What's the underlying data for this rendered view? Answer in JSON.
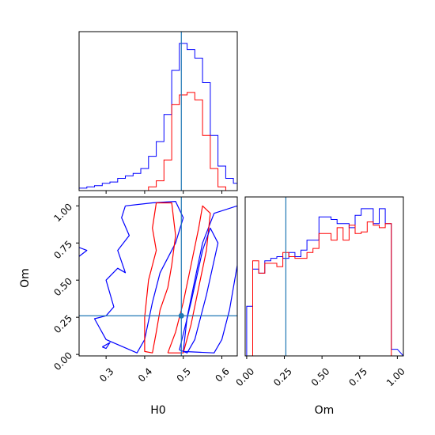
{
  "chart_data": {
    "type": "corner",
    "parameters": [
      "H0",
      "Om"
    ],
    "truth": {
      "H0": 0.495,
      "Om": 0.26
    },
    "colors": {
      "blue": "#0000ff",
      "red": "#ff0000",
      "truth": "#1f77b4"
    },
    "panels": [
      {
        "id": "hist-H0",
        "type": "histogram",
        "parameter": "H0",
        "xlim": [
          0.23,
          0.64
        ],
        "xticks": [
          0.3,
          0.4,
          0.5,
          0.6
        ],
        "bin_edges": [
          0.23,
          0.25,
          0.27,
          0.29,
          0.31,
          0.33,
          0.35,
          0.37,
          0.39,
          0.41,
          0.43,
          0.45,
          0.47,
          0.49,
          0.51,
          0.53,
          0.55,
          0.57,
          0.59,
          0.61,
          0.63,
          0.64
        ],
        "series": [
          {
            "color": "blue",
            "counts": [
              2,
              3,
              4,
              6,
              7,
              10,
              12,
              14,
              18,
              28,
              40,
              62,
              98,
              120,
              115,
              108,
              88,
              45,
              20,
              10,
              6
            ]
          },
          {
            "color": "red",
            "counts": [
              0,
              0,
              0,
              0,
              0,
              0,
              0,
              0,
              0,
              3,
              8,
              25,
              70,
              78,
              80,
              74,
              45,
              18,
              3,
              0,
              0
            ]
          }
        ]
      },
      {
        "id": "hist-Om",
        "type": "histogram",
        "parameter": "Om",
        "xlim": [
          -0.01,
          1.04
        ],
        "xticks": [
          0.0,
          0.25,
          0.5,
          0.75,
          1.0
        ],
        "xtick_labels": [
          "0.00",
          "0.25",
          "0.50",
          "0.75",
          "1.00"
        ],
        "xlabel": "Om",
        "bin_edges": [
          0.0,
          0.04,
          0.08,
          0.12,
          0.16,
          0.2,
          0.24,
          0.28,
          0.32,
          0.36,
          0.4,
          0.44,
          0.48,
          0.52,
          0.56,
          0.6,
          0.64,
          0.68,
          0.72,
          0.76,
          0.8,
          0.84,
          0.88,
          0.92,
          0.96,
          1.0,
          1.04
        ],
        "series": [
          {
            "color": "blue",
            "counts": [
              60,
              105,
              100,
              115,
              118,
              120,
              118,
              125,
              120,
              128,
              140,
              140,
              168,
              168,
              165,
              160,
              160,
              155,
              170,
              178,
              178,
              160,
              178,
              160,
              8
            ]
          },
          {
            "color": "red",
            "counts": [
              0,
              115,
              100,
              112,
              112,
              108,
              125,
              120,
              118,
              118,
              125,
              130,
              148,
              148,
              140,
              155,
              140,
              158,
              148,
              150,
              162,
              158,
              155,
              160,
              0
            ]
          }
        ]
      },
      {
        "id": "contour-H0-Om",
        "type": "contour",
        "x_param": "H0",
        "y_param": "Om",
        "xlim": [
          0.23,
          0.64
        ],
        "ylim": [
          -0.01,
          1.06
        ],
        "xticks": [
          0.3,
          0.4,
          0.5,
          0.6
        ],
        "yticks": [
          0.0,
          0.25,
          0.5,
          0.75,
          1.0
        ],
        "ytick_labels": [
          "0.00",
          "0.25",
          "0.50",
          "0.75",
          "1.00"
        ],
        "xlabel": "H0",
        "ylabel": "Om",
        "contours": [
          {
            "color": "blue",
            "points": [
              [
                0.35,
                1.0
              ],
              [
                0.42,
                1.02
              ],
              [
                0.48,
                1.03
              ],
              [
                0.5,
                0.92
              ],
              [
                0.48,
                0.75
              ],
              [
                0.44,
                0.55
              ],
              [
                0.42,
                0.35
              ],
              [
                0.4,
                0.1
              ],
              [
                0.38,
                0.01
              ],
              [
                0.3,
                0.1
              ],
              [
                0.27,
                0.24
              ],
              [
                0.3,
                0.26
              ],
              [
                0.32,
                0.32
              ],
              [
                0.3,
                0.5
              ],
              [
                0.33,
                0.58
              ],
              [
                0.35,
                0.55
              ],
              [
                0.33,
                0.7
              ],
              [
                0.36,
                0.8
              ],
              [
                0.34,
                0.92
              ],
              [
                0.35,
                1.0
              ]
            ]
          },
          {
            "color": "blue",
            "points": [
              [
                0.5,
                0.02
              ],
              [
                0.51,
                0.25
              ],
              [
                0.53,
                0.5
              ],
              [
                0.55,
                0.75
              ],
              [
                0.58,
                0.95
              ],
              [
                0.64,
                1.0
              ],
              [
                0.64,
                0.6
              ],
              [
                0.62,
                0.3
              ],
              [
                0.6,
                0.1
              ],
              [
                0.58,
                0.01
              ],
              [
                0.5,
                0.02
              ]
            ]
          },
          {
            "color": "blue",
            "points": [
              [
                0.23,
                0.66
              ],
              [
                0.25,
                0.7
              ],
              [
                0.23,
                0.72
              ]
            ]
          },
          {
            "color": "blue",
            "points": [
              [
                0.29,
                0.05
              ],
              [
                0.31,
                0.08
              ],
              [
                0.3,
                0.04
              ],
              [
                0.29,
                0.05
              ]
            ]
          },
          {
            "color": "red",
            "points": [
              [
                0.43,
                1.02
              ],
              [
                0.47,
                1.02
              ],
              [
                0.48,
                0.8
              ],
              [
                0.47,
                0.6
              ],
              [
                0.46,
                0.45
              ],
              [
                0.44,
                0.3
              ],
              [
                0.43,
                0.15
              ],
              [
                0.42,
                0.01
              ],
              [
                0.4,
                0.02
              ],
              [
                0.4,
                0.25
              ],
              [
                0.41,
                0.5
              ],
              [
                0.43,
                0.7
              ],
              [
                0.42,
                0.85
              ],
              [
                0.43,
                1.02
              ]
            ]
          },
          {
            "color": "red",
            "points": [
              [
                0.46,
                0.01
              ],
              [
                0.48,
                0.15
              ],
              [
                0.5,
                0.35
              ],
              [
                0.52,
                0.6
              ],
              [
                0.54,
                0.85
              ],
              [
                0.55,
                1.0
              ],
              [
                0.57,
                0.95
              ],
              [
                0.56,
                0.7
              ],
              [
                0.54,
                0.45
              ],
              [
                0.52,
                0.2
              ],
              [
                0.5,
                0.01
              ],
              [
                0.46,
                0.01
              ]
            ]
          },
          {
            "color": "blue",
            "points": [
              [
                0.49,
                0.03
              ],
              [
                0.52,
                0.35
              ],
              [
                0.55,
                0.7
              ],
              [
                0.57,
                0.85
              ],
              [
                0.59,
                0.75
              ],
              [
                0.56,
                0.4
              ],
              [
                0.53,
                0.1
              ],
              [
                0.51,
                0.01
              ],
              [
                0.49,
                0.03
              ]
            ]
          }
        ]
      }
    ]
  }
}
